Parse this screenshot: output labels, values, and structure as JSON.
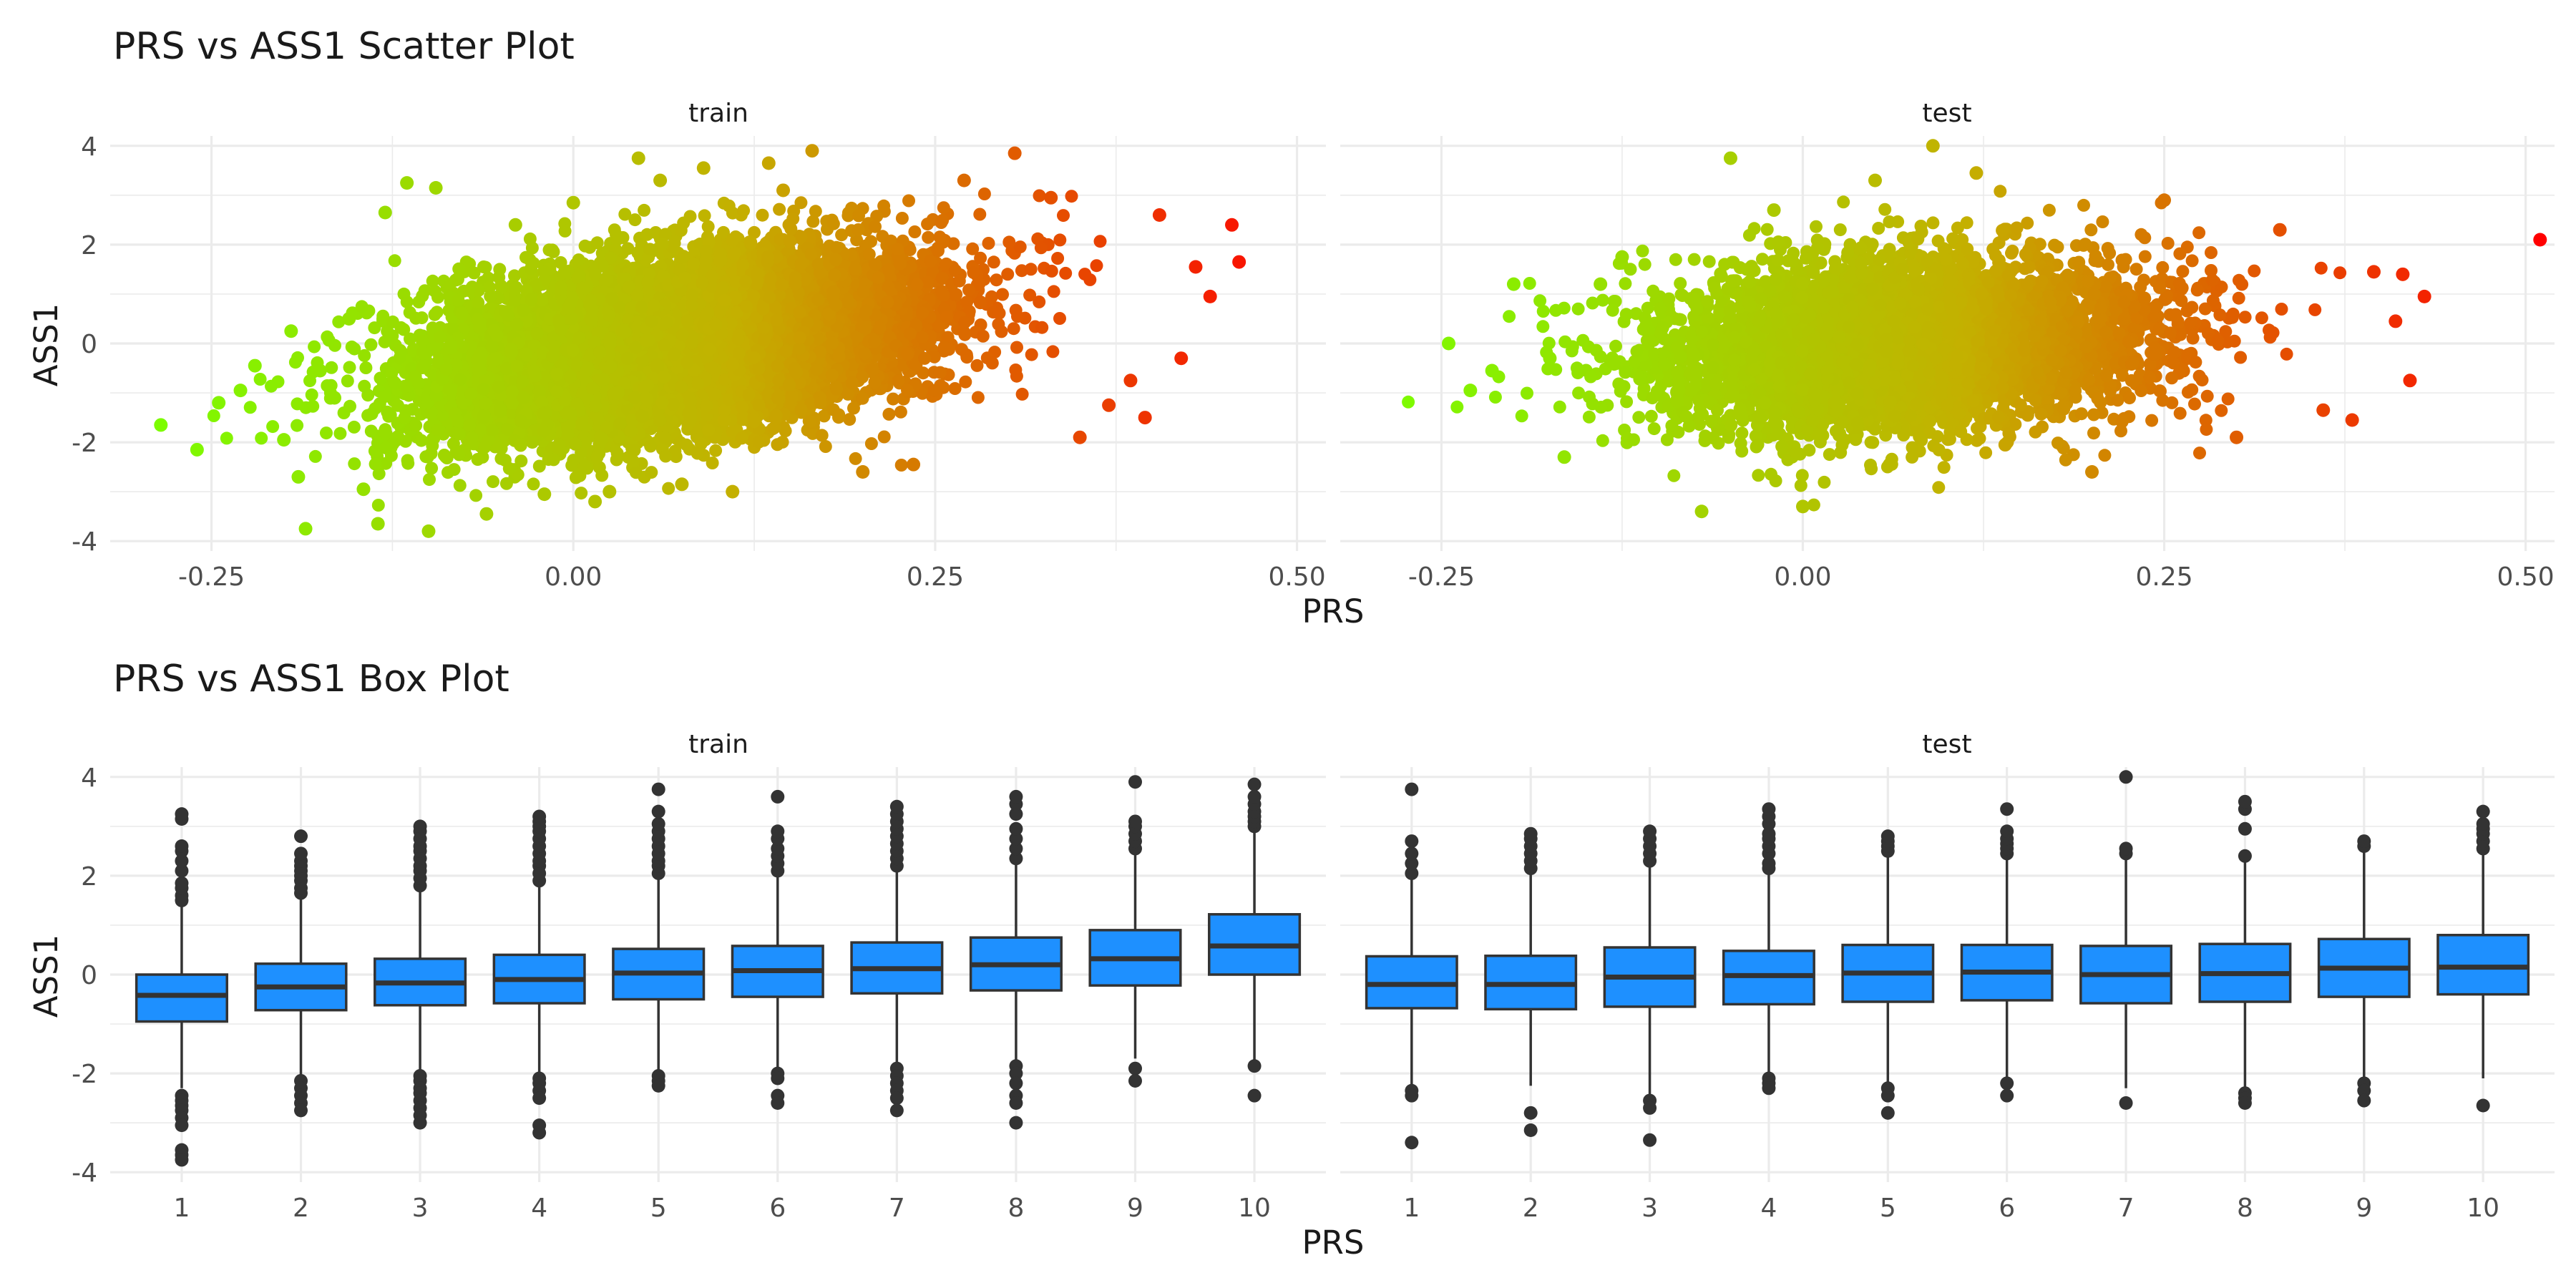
{
  "colors": {
    "low": "#7cfc00",
    "mid": "#c4b000",
    "high": "#ff0000",
    "box_fill": "#1e90ff",
    "box_line": "#333333",
    "outlier": "#333333",
    "grid": "#ebebeb"
  },
  "chart_data": [
    {
      "type": "scatter",
      "title": "PRS vs ASS1 Scatter Plot",
      "xlabel": "PRS",
      "ylabel": "ASS1",
      "xlim": [
        -0.32,
        0.52
      ],
      "ylim": [
        -4.2,
        4.2
      ],
      "x_ticks": [
        -0.25,
        0,
        0.25,
        0.5
      ],
      "x_tick_labels": [
        "-0.25",
        "0.00",
        "0.25",
        "0.50"
      ],
      "y_ticks": [
        -4,
        -2,
        0,
        2,
        4
      ],
      "y_tick_labels": [
        "-4",
        "-2",
        "0",
        "2",
        "4"
      ],
      "grid": true,
      "color_scale": {
        "variable": "PRS",
        "low": "#7cfc00",
        "high": "#ff0000"
      },
      "panels": [
        {
          "name": "train",
          "points": [
            [
              -0.285,
              -1.65
            ],
            [
              -0.26,
              -2.15
            ],
            [
              -0.245,
              -1.2
            ],
            [
              -0.23,
              -0.95
            ],
            [
              -0.22,
              -0.45
            ],
            [
              -0.2,
              -1.95
            ],
            [
              -0.195,
              0.25
            ],
            [
              -0.19,
              -2.7
            ],
            [
              -0.185,
              -3.75
            ],
            [
              -0.175,
              -0.55
            ],
            [
              -0.165,
              -1.1
            ],
            [
              -0.155,
              0.5
            ],
            [
              -0.145,
              -2.95
            ],
            [
              -0.135,
              -3.65
            ],
            [
              -0.13,
              2.65
            ],
            [
              -0.115,
              3.25
            ],
            [
              -0.1,
              -3.8
            ],
            [
              -0.095,
              3.15
            ],
            [
              -0.08,
              1.3
            ],
            [
              -0.06,
              -3.45
            ],
            [
              -0.04,
              2.4
            ],
            [
              -0.02,
              -3.05
            ],
            [
              0.0,
              2.85
            ],
            [
              0.015,
              -3.2
            ],
            [
              0.025,
              -3.0
            ],
            [
              0.045,
              3.75
            ],
            [
              0.06,
              3.3
            ],
            [
              0.075,
              -2.85
            ],
            [
              0.09,
              3.55
            ],
            [
              0.11,
              -3.0
            ],
            [
              0.135,
              3.65
            ],
            [
              0.145,
              3.1
            ],
            [
              0.165,
              3.9
            ],
            [
              0.2,
              -2.6
            ],
            [
              0.235,
              -2.45
            ],
            [
              0.27,
              3.3
            ],
            [
              0.305,
              3.85
            ],
            [
              0.33,
              2.95
            ],
            [
              0.35,
              -1.9
            ],
            [
              0.37,
              -1.25
            ],
            [
              0.385,
              -0.75
            ],
            [
              0.395,
              -1.5
            ],
            [
              0.405,
              2.6
            ],
            [
              0.42,
              -0.3
            ],
            [
              0.43,
              1.55
            ],
            [
              0.44,
              0.95
            ],
            [
              0.455,
              2.4
            ],
            [
              0.46,
              1.65
            ]
          ]
        },
        {
          "name": "test",
          "points": [
            [
              -0.245,
              0.0
            ],
            [
              -0.23,
              -0.95
            ],
            [
              -0.215,
              -0.55
            ],
            [
              -0.2,
              1.2
            ],
            [
              -0.175,
              -0.3
            ],
            [
              -0.165,
              -2.3
            ],
            [
              -0.14,
              1.2
            ],
            [
              -0.125,
              1.75
            ],
            [
              -0.07,
              -3.4
            ],
            [
              -0.05,
              3.75
            ],
            [
              -0.02,
              2.7
            ],
            [
              0.0,
              -3.3
            ],
            [
              0.05,
              3.3
            ],
            [
              0.06,
              -2.45
            ],
            [
              0.09,
              4.0
            ],
            [
              0.12,
              3.45
            ],
            [
              0.14,
              -2.05
            ],
            [
              0.2,
              -2.6
            ],
            [
              0.25,
              2.9
            ],
            [
              0.3,
              -1.9
            ],
            [
              0.33,
              2.3
            ],
            [
              0.36,
              -1.35
            ],
            [
              0.38,
              -1.55
            ],
            [
              0.395,
              1.45
            ],
            [
              0.41,
              0.45
            ],
            [
              0.415,
              1.4
            ],
            [
              0.42,
              -0.75
            ],
            [
              0.43,
              0.95
            ],
            [
              0.51,
              2.1
            ]
          ]
        }
      ]
    },
    {
      "type": "box",
      "title": "PRS vs ASS1 Box Plot",
      "xlabel": "PRS",
      "ylabel": "ASS1",
      "categories": [
        "1",
        "2",
        "3",
        "4",
        "5",
        "6",
        "7",
        "8",
        "9",
        "10"
      ],
      "ylim": [
        -4.2,
        4.2
      ],
      "y_ticks": [
        -4,
        -2,
        0,
        2,
        4
      ],
      "y_tick_labels": [
        "-4",
        "-2",
        "0",
        "2",
        "4"
      ],
      "grid": true,
      "panels": [
        {
          "name": "train",
          "boxes": [
            {
              "q1": -0.95,
              "median": -0.42,
              "q3": 0.0,
              "lower": -2.3,
              "upper": 1.4
            },
            {
              "q1": -0.72,
              "median": -0.25,
              "q3": 0.22,
              "lower": -2.05,
              "upper": 1.6
            },
            {
              "q1": -0.62,
              "median": -0.17,
              "q3": 0.32,
              "lower": -1.95,
              "upper": 1.75
            },
            {
              "q1": -0.58,
              "median": -0.1,
              "q3": 0.4,
              "lower": -2.0,
              "upper": 1.85
            },
            {
              "q1": -0.5,
              "median": 0.03,
              "q3": 0.52,
              "lower": -1.95,
              "upper": 2.0
            },
            {
              "q1": -0.45,
              "median": 0.08,
              "q3": 0.58,
              "lower": -1.95,
              "upper": 2.05
            },
            {
              "q1": -0.38,
              "median": 0.12,
              "q3": 0.65,
              "lower": -1.85,
              "upper": 2.15
            },
            {
              "q1": -0.32,
              "median": 0.2,
              "q3": 0.75,
              "lower": -1.8,
              "upper": 2.3
            },
            {
              "q1": -0.22,
              "median": 0.32,
              "q3": 0.9,
              "lower": -1.7,
              "upper": 2.5
            },
            {
              "q1": 0.0,
              "median": 0.58,
              "q3": 1.22,
              "lower": -1.75,
              "upper": 2.95
            }
          ],
          "outliers": [
            [
              -2.45,
              -2.55,
              -2.65,
              -2.75,
              -2.9,
              -3.05,
              -3.55,
              -3.65,
              -3.75,
              1.5,
              1.6,
              1.75,
              1.85,
              2.1,
              2.3,
              2.5,
              2.6,
              3.15,
              3.25
            ],
            [
              -2.15,
              -2.3,
              -2.45,
              -2.6,
              -2.75,
              1.65,
              1.75,
              1.9,
              2.0,
              2.1,
              2.2,
              2.3,
              2.45,
              2.8
            ],
            [
              -2.05,
              -2.15,
              -2.3,
              -2.4,
              -2.55,
              -2.7,
              -2.85,
              -3.0,
              1.8,
              1.95,
              2.1,
              2.2,
              2.35,
              2.5,
              2.6,
              2.75,
              2.9,
              3.0
            ],
            [
              -2.1,
              -2.2,
              -2.35,
              -2.5,
              -3.05,
              -3.2,
              1.9,
              2.05,
              2.2,
              2.3,
              2.45,
              2.6,
              2.75,
              2.9,
              3.0,
              3.1,
              3.2
            ],
            [
              -2.05,
              -2.15,
              -2.25,
              2.05,
              2.2,
              2.3,
              2.45,
              2.6,
              2.75,
              2.9,
              3.05,
              3.3,
              3.75
            ],
            [
              -2.0,
              -2.1,
              -2.45,
              -2.6,
              2.1,
              2.25,
              2.4,
              2.55,
              2.75,
              2.9,
              3.6
            ],
            [
              -1.9,
              -2.05,
              -2.2,
              -2.35,
              -2.5,
              -2.75,
              2.2,
              2.35,
              2.5,
              2.65,
              2.8,
              2.95,
              3.1,
              3.25,
              3.4
            ],
            [
              -1.85,
              -2.0,
              -2.2,
              -2.45,
              -2.6,
              -3.0,
              2.35,
              2.55,
              2.75,
              2.95,
              3.25,
              3.45,
              3.6
            ],
            [
              -1.9,
              -2.15,
              2.55,
              2.7,
              2.85,
              3.0,
              3.1,
              3.9
            ],
            [
              -1.85,
              -2.45,
              3.0,
              3.1,
              3.2,
              3.3,
              3.45,
              3.6,
              3.85
            ]
          ]
        },
        {
          "name": "test",
          "boxes": [
            {
              "q1": -0.68,
              "median": -0.2,
              "q3": 0.37,
              "lower": -2.3,
              "upper": 1.95
            },
            {
              "q1": -0.7,
              "median": -0.2,
              "q3": 0.38,
              "lower": -2.25,
              "upper": 2.05
            },
            {
              "q1": -0.65,
              "median": -0.05,
              "q3": 0.55,
              "lower": -2.45,
              "upper": 2.2
            },
            {
              "q1": -0.6,
              "median": -0.02,
              "q3": 0.48,
              "lower": -2.05,
              "upper": 2.05
            },
            {
              "q1": -0.55,
              "median": 0.03,
              "q3": 0.6,
              "lower": -2.25,
              "upper": 2.4
            },
            {
              "q1": -0.52,
              "median": 0.05,
              "q3": 0.6,
              "lower": -2.15,
              "upper": 2.35
            },
            {
              "q1": -0.58,
              "median": 0.0,
              "q3": 0.58,
              "lower": -2.3,
              "upper": 2.35
            },
            {
              "q1": -0.55,
              "median": 0.02,
              "q3": 0.62,
              "lower": -2.35,
              "upper": 2.45
            },
            {
              "q1": -0.45,
              "median": 0.13,
              "q3": 0.72,
              "lower": -2.15,
              "upper": 2.55
            },
            {
              "q1": -0.4,
              "median": 0.15,
              "q3": 0.8,
              "lower": -2.1,
              "upper": 2.5
            }
          ],
          "outliers": [
            [
              -2.35,
              -2.45,
              -3.4,
              2.05,
              2.25,
              2.45,
              2.7,
              3.75
            ],
            [
              -2.8,
              -3.15,
              2.15,
              2.3,
              2.45,
              2.6,
              2.75,
              2.85
            ],
            [
              -2.55,
              -2.7,
              -3.35,
              2.3,
              2.45,
              2.6,
              2.75,
              2.9
            ],
            [
              -2.1,
              -2.2,
              -2.3,
              2.15,
              2.25,
              2.45,
              2.6,
              2.75,
              2.85,
              3.05,
              3.2,
              3.35
            ],
            [
              -2.3,
              -2.45,
              -2.8,
              2.5,
              2.6,
              2.7,
              2.8
            ],
            [
              -2.2,
              -2.45,
              2.45,
              2.55,
              2.65,
              2.75,
              2.9,
              3.35
            ],
            [
              -2.6,
              2.45,
              2.55,
              4.0
            ],
            [
              -2.4,
              -2.5,
              -2.6,
              2.4,
              2.95,
              3.35,
              3.5
            ],
            [
              -2.2,
              -2.35,
              -2.55,
              2.6,
              2.7
            ],
            [
              -2.65,
              2.55,
              2.7,
              2.85,
              2.95,
              3.05,
              3.3
            ]
          ]
        }
      ]
    }
  ]
}
